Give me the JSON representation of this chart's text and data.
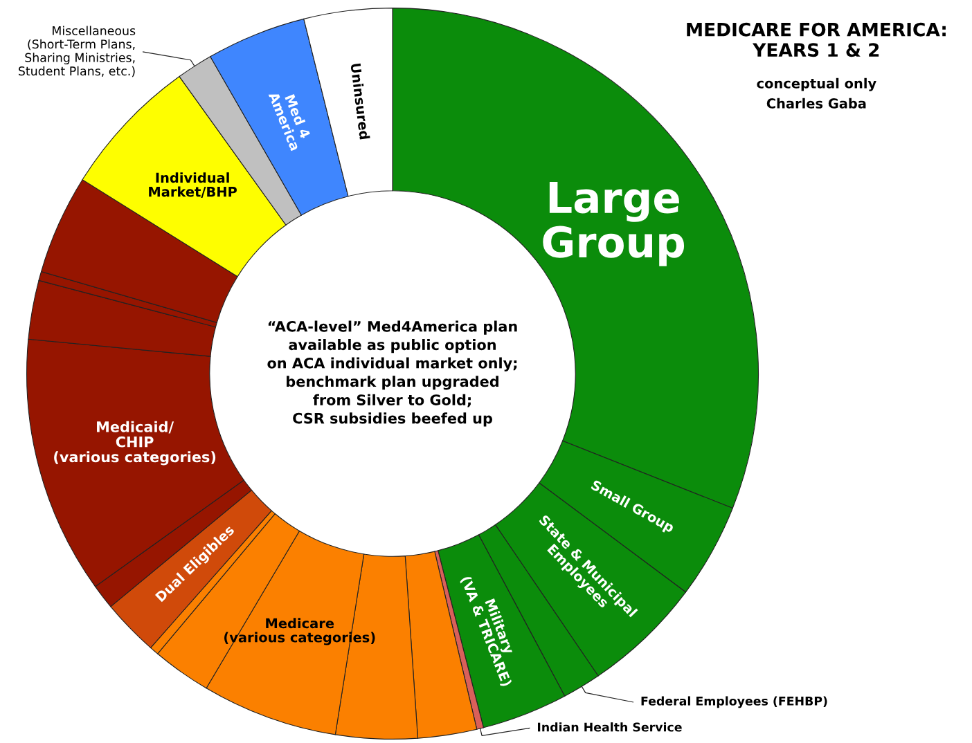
{
  "chart_data": {
    "type": "donut",
    "title": "MEDICARE FOR AMERICA:\nYEARS 1 & 2",
    "subtitle": "conceptual only",
    "annotations": [
      "Charles Gaba",
      "“ACA-level” Med4America plan\navailable as public option\non ACA individual market only;\nbenchmark plan upgraded\nfrom Silver to Gold;\nCSR subsidies beefed up"
    ],
    "categories": [
      "Large\nGroup",
      "Small Group",
      "State & Municipal\nEmployees",
      "Federal Employees (FEHBP)",
      "Military\n(VA & TRICARE)",
      "Indian Health Service",
      null,
      null,
      "Medicare\n(various categories)",
      null,
      null,
      "Dual Eligibles",
      null,
      "Medicaid/\nCHIP\n(various categories)",
      null,
      null,
      null,
      "Individual\nMarket/BHP",
      "Miscellaneous\n(Short-Term Plans,\nSharing Ministries,\nStudent Plans, etc.)",
      "Med 4\nAmerica",
      "Uninsured"
    ],
    "values": [
      31.0,
      4.2,
      5.3,
      1.7,
      3.8,
      0.3,
      2.6,
      3.6,
      6.0,
      2.6,
      0.4,
      2.5,
      1.1,
      11.4,
      2.6,
      0.4,
      4.4,
      6.2,
      1.6,
      4.4,
      3.9
    ],
    "colors": [
      "#0b8c0b",
      "#0b8c0b",
      "#0b8c0b",
      "#0b8c0b",
      "#0b8c0b",
      "#d9605a",
      "#fb8000",
      "#fb8000",
      "#fb8000",
      "#fb8000",
      "#fb8000",
      "#d04a0a",
      "#961500",
      "#961500",
      "#961500",
      "#961500",
      "#961500",
      "#fefe00",
      "#c0c0c0",
      "#3f86fe",
      "#ffffff"
    ],
    "legend": false
  }
}
